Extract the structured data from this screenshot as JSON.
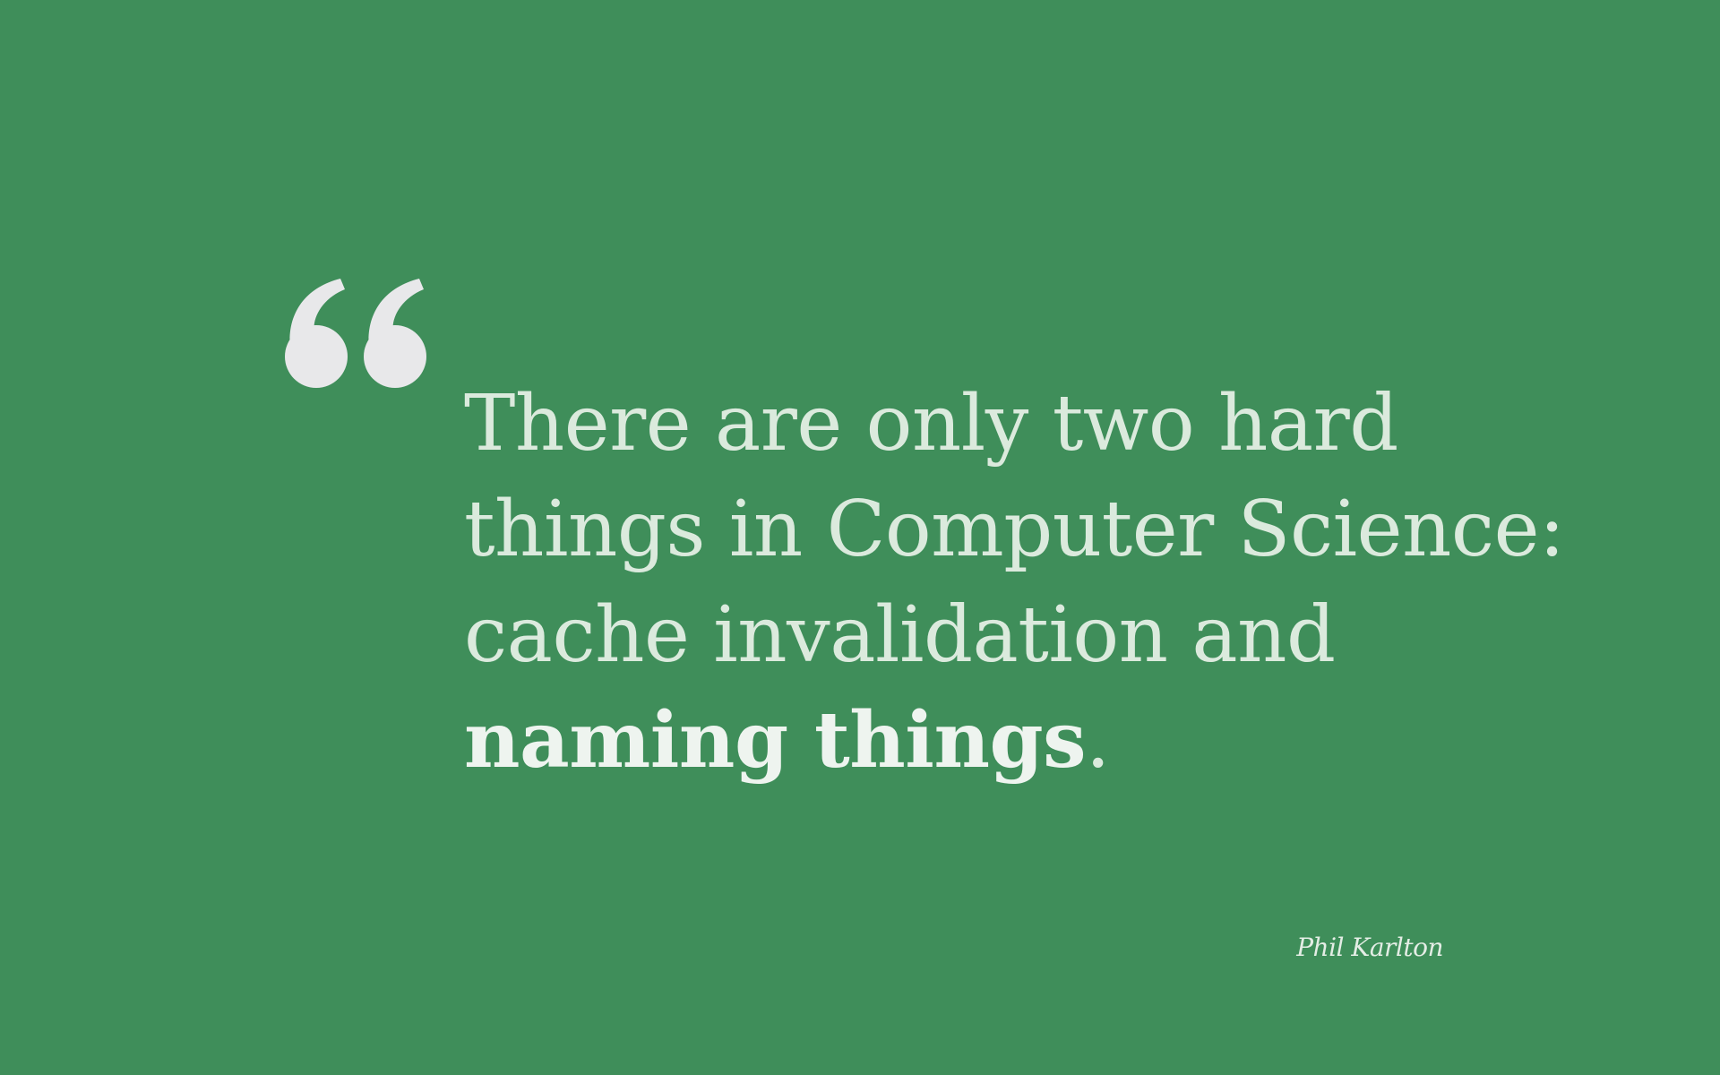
{
  "quote": {
    "icon": "opening-quote-icon",
    "mark_color": "#e8e8ea",
    "lines": [
      "There are only two hard",
      "things in Computer Science:",
      "cache invalidation and"
    ],
    "emphasis_text": "naming things",
    "emphasis_punctuation": ".",
    "text_color": "#dbeadd"
  },
  "attribution": {
    "author": "Phil Karlton"
  },
  "theme": {
    "background": "#3f8e5a"
  }
}
